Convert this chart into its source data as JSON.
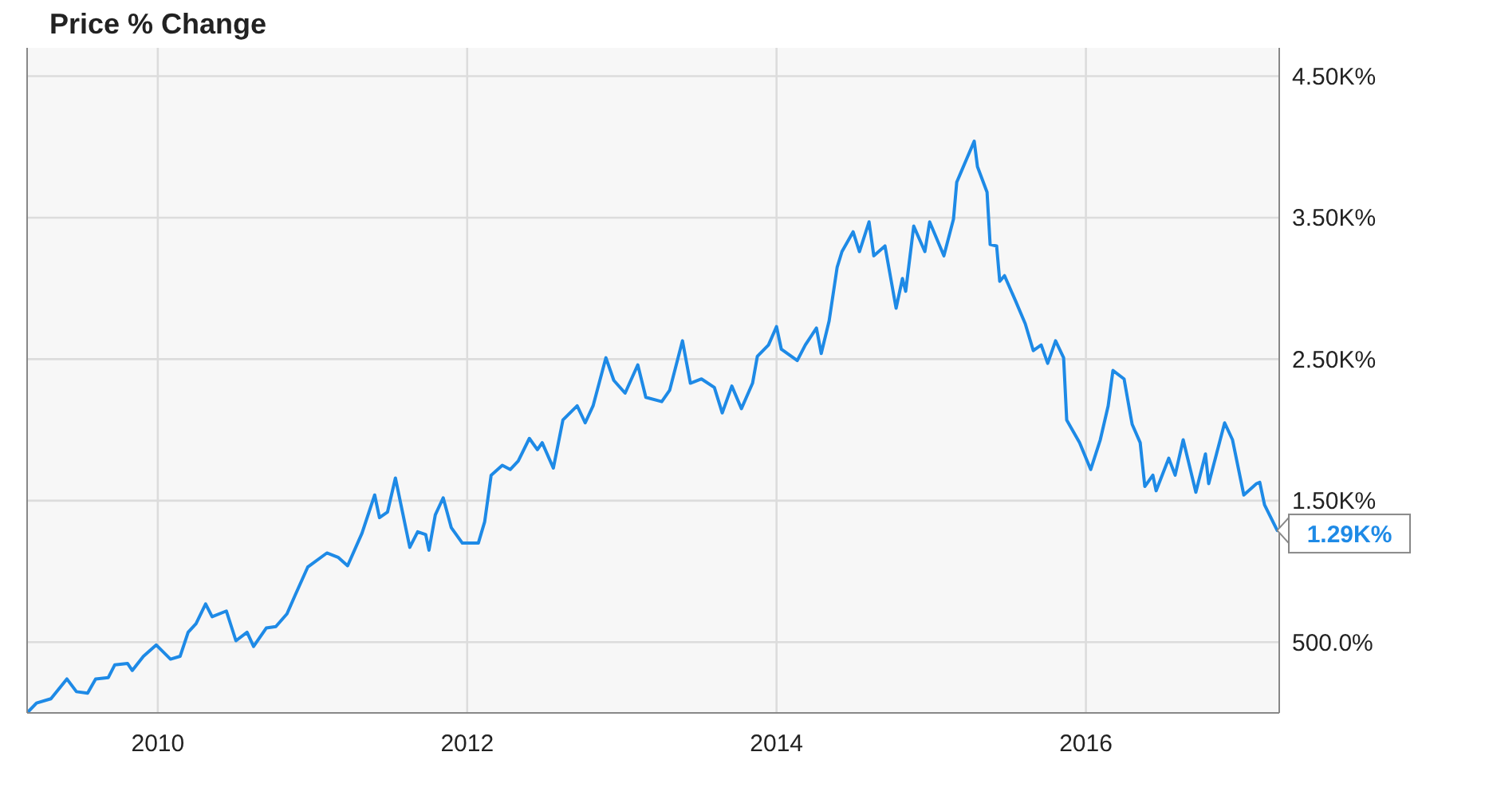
{
  "chart_data": {
    "type": "line",
    "title": "Price % Change",
    "xlim": [
      2009.155,
      2017.25
    ],
    "xticks": [
      2010,
      2012,
      2014,
      2016
    ],
    "ylim": [
      0,
      4700
    ],
    "yticks": [
      {
        "value": 500,
        "label": "500.0%"
      },
      {
        "value": 1500,
        "label": "1.50K%"
      },
      {
        "value": 2500,
        "label": "2.50K%"
      },
      {
        "value": 3500,
        "label": "3.50K%"
      },
      {
        "value": 4500,
        "label": "4.50K%"
      }
    ],
    "grid": true,
    "series": [
      {
        "color": "#1e8ae6",
        "x": [
          2009.155,
          2009.216,
          2009.309,
          2009.412,
          2009.474,
          2009.546,
          2009.598,
          2009.68,
          2009.722,
          2009.804,
          2009.835,
          2009.907,
          2009.99,
          2010.082,
          2010.144,
          2010.196,
          2010.247,
          2010.309,
          2010.351,
          2010.443,
          2010.505,
          2010.577,
          2010.619,
          2010.701,
          2010.763,
          2010.835,
          2010.887,
          2010.969,
          2011.093,
          2011.165,
          2011.227,
          2011.32,
          2011.402,
          2011.433,
          2011.485,
          2011.536,
          2011.629,
          2011.68,
          2011.732,
          2011.753,
          2011.794,
          2011.845,
          2011.897,
          2011.969,
          2012.072,
          2012.113,
          2012.155,
          2012.227,
          2012.278,
          2012.33,
          2012.402,
          2012.454,
          2012.485,
          2012.557,
          2012.619,
          2012.711,
          2012.763,
          2012.814,
          2012.897,
          2012.948,
          2013.021,
          2013.103,
          2013.155,
          2013.258,
          2013.309,
          2013.392,
          2013.443,
          2013.515,
          2013.598,
          2013.649,
          2013.711,
          2013.773,
          2013.845,
          2013.876,
          2013.948,
          2014.0,
          2014.031,
          2014.134,
          2014.186,
          2014.258,
          2014.289,
          2014.34,
          2014.392,
          2014.423,
          2014.495,
          2014.536,
          2014.598,
          2014.629,
          2014.701,
          2014.773,
          2014.814,
          2014.835,
          2014.887,
          2014.959,
          2014.99,
          2015.082,
          2015.144,
          2015.165,
          2015.196,
          2015.227,
          2015.278,
          2015.299,
          2015.361,
          2015.381,
          2015.423,
          2015.443,
          2015.474,
          2015.546,
          2015.608,
          2015.66,
          2015.711,
          2015.753,
          2015.804,
          2015.856,
          2015.876,
          2015.959,
          2016.031,
          2016.093,
          2016.144,
          2016.175,
          2016.247,
          2016.289,
          2016.299,
          2016.351,
          2016.381,
          2016.433,
          2016.454,
          2016.536,
          2016.577,
          2016.629,
          2016.711,
          2016.773,
          2016.794,
          2016.897,
          2016.948,
          2017.021,
          2017.103,
          2017.124,
          2017.155,
          2017.237
        ],
        "values": [
          0,
          70,
          100,
          240,
          150,
          140,
          240,
          250,
          340,
          350,
          300,
          400,
          480,
          380,
          400,
          570,
          630,
          770,
          680,
          720,
          510,
          570,
          470,
          600,
          610,
          700,
          830,
          1030,
          1130,
          1100,
          1040,
          1270,
          1540,
          1380,
          1420,
          1660,
          1170,
          1280,
          1260,
          1150,
          1400,
          1520,
          1310,
          1200,
          1200,
          1350,
          1680,
          1750,
          1720,
          1780,
          1940,
          1860,
          1910,
          1730,
          2070,
          2170,
          2050,
          2170,
          2510,
          2350,
          2260,
          2460,
          2230,
          2200,
          2280,
          2630,
          2330,
          2360,
          2300,
          2120,
          2310,
          2150,
          2330,
          2520,
          2600,
          2730,
          2570,
          2490,
          2600,
          2720,
          2540,
          2770,
          3150,
          3260,
          3400,
          3260,
          3470,
          3230,
          3300,
          2860,
          3070,
          2980,
          3440,
          3260,
          3470,
          3230,
          3490,
          3750,
          3830,
          3910,
          4040,
          3860,
          3680,
          3310,
          3300,
          3050,
          3090,
          2910,
          2750,
          2560,
          2600,
          2470,
          2630,
          2510,
          2070,
          1910,
          1720,
          1930,
          2170,
          2420,
          2360,
          2100,
          2040,
          1910,
          1600,
          1680,
          1570,
          1800,
          1680,
          1930,
          1560,
          1830,
          1620,
          2050,
          1930,
          1540,
          1620,
          1630,
          1470,
          1290
        ]
      }
    ],
    "annotations": [
      {
        "text": "1.29K%",
        "x": 2017.237,
        "y": 1290
      }
    ]
  }
}
